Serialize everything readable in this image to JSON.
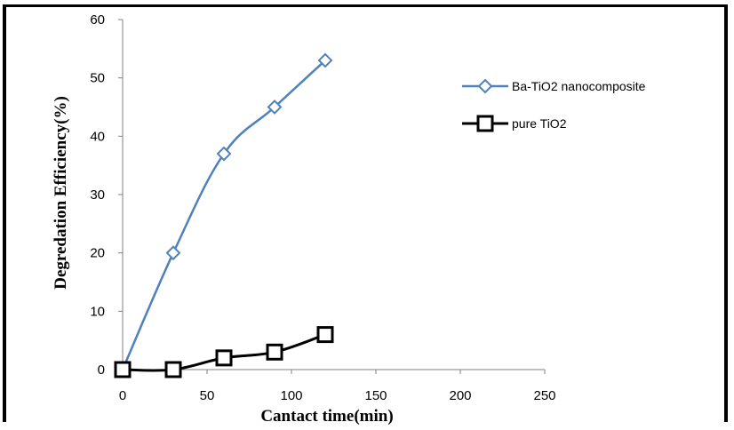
{
  "chart_data": {
    "type": "line",
    "xlabel": "Cantact time(min)",
    "ylabel": "Degredation Efficiency(%)",
    "xlim": [
      0,
      250
    ],
    "ylim": [
      0,
      60
    ],
    "xticks": [
      0,
      50,
      100,
      150,
      200,
      250
    ],
    "yticks": [
      0,
      10,
      20,
      30,
      40,
      50,
      60
    ],
    "grid": false,
    "legend_position": "right",
    "series": [
      {
        "name": "Ba-TiO2 nanocomposite",
        "marker": "diamond",
        "color": "#4F81BD",
        "x": [
          0,
          30,
          60,
          90,
          120
        ],
        "y": [
          0,
          20,
          37,
          45,
          53
        ]
      },
      {
        "name": "pure TiO2",
        "marker": "square",
        "color": "#000000",
        "x": [
          0,
          30,
          60,
          90,
          120
        ],
        "y": [
          0,
          0,
          2,
          3,
          6
        ]
      }
    ]
  }
}
